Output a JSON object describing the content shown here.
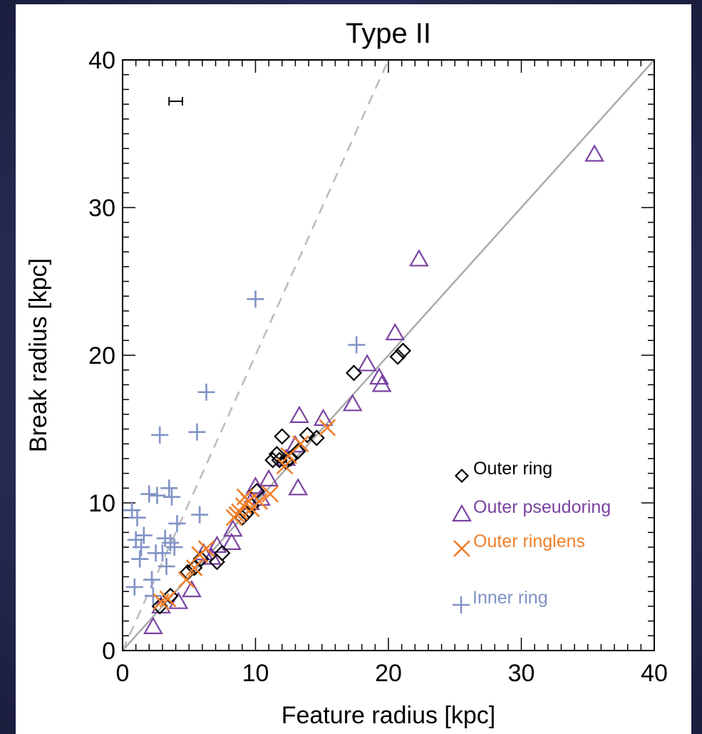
{
  "chart_data": {
    "type": "scatter",
    "title": "Type II",
    "xlabel": "Feature radius [kpc]",
    "ylabel": "Break radius [kpc]",
    "xlim": [
      0,
      40
    ],
    "ylim": [
      0,
      40
    ],
    "xticks": [
      "0",
      "10",
      "20",
      "30",
      "40"
    ],
    "yticks": [
      "0",
      "10",
      "20",
      "30",
      "40"
    ],
    "reference_lines": [
      {
        "style": "solid",
        "color": "#aaaaaa",
        "slope": 1
      },
      {
        "style": "dashed",
        "color": "#bbbbbb",
        "slope": 2
      }
    ],
    "errorbar": {
      "x": 4.0,
      "y": 37.2,
      "xerr": 0.5,
      "color": "#000000"
    },
    "legend_placement": "lower-right",
    "series": [
      {
        "name": "Outer ring",
        "marker": "diamond",
        "color": "#000000",
        "points": [
          [
            2.8,
            3.0
          ],
          [
            3.6,
            3.7
          ],
          [
            4.9,
            5.3
          ],
          [
            5.4,
            5.6
          ],
          [
            5.9,
            6.2
          ],
          [
            7.1,
            6.0
          ],
          [
            7.5,
            6.6
          ],
          [
            9.0,
            9.0
          ],
          [
            9.3,
            9.3
          ],
          [
            9.7,
            9.8
          ],
          [
            10.1,
            10.8
          ],
          [
            11.3,
            12.9
          ],
          [
            11.6,
            13.3
          ],
          [
            11.8,
            12.9
          ],
          [
            12.0,
            14.5
          ],
          [
            12.3,
            12.8
          ],
          [
            12.6,
            13.0
          ],
          [
            13.2,
            13.5
          ],
          [
            13.9,
            14.6
          ],
          [
            14.6,
            14.4
          ],
          [
            17.4,
            18.8
          ],
          [
            20.7,
            19.9
          ],
          [
            21.1,
            20.3
          ]
        ]
      },
      {
        "name": "Outer pseudoring",
        "marker": "triangle",
        "color": "#7a43a2",
        "points": [
          [
            2.3,
            1.6
          ],
          [
            2.9,
            3.0
          ],
          [
            4.2,
            3.3
          ],
          [
            5.2,
            4.1
          ],
          [
            6.1,
            6.6
          ],
          [
            6.7,
            6.3
          ],
          [
            7.1,
            7.1
          ],
          [
            8.2,
            7.3
          ],
          [
            8.3,
            8.2
          ],
          [
            9.6,
            10.0
          ],
          [
            10.0,
            11.1
          ],
          [
            10.4,
            10.3
          ],
          [
            11.0,
            11.6
          ],
          [
            12.3,
            13.0
          ],
          [
            13.0,
            13.9
          ],
          [
            13.2,
            11.0
          ],
          [
            13.3,
            15.9
          ],
          [
            15.1,
            15.7
          ],
          [
            17.3,
            16.7
          ],
          [
            18.4,
            19.4
          ],
          [
            19.3,
            18.5
          ],
          [
            19.5,
            18.0
          ],
          [
            20.5,
            21.5
          ],
          [
            22.3,
            26.5
          ],
          [
            35.5,
            33.6
          ]
        ]
      },
      {
        "name": "Outer ringlens",
        "marker": "x",
        "color": "#f07f2a",
        "points": [
          [
            2.9,
            3.3
          ],
          [
            3.4,
            3.5
          ],
          [
            4.8,
            4.8
          ],
          [
            5.4,
            5.6
          ],
          [
            5.8,
            6.5
          ],
          [
            6.3,
            6.9
          ],
          [
            8.4,
            9.0
          ],
          [
            8.6,
            9.2
          ],
          [
            8.8,
            9.4
          ],
          [
            9.1,
            9.8
          ],
          [
            9.2,
            10.4
          ],
          [
            9.5,
            10.1
          ],
          [
            9.7,
            9.6
          ],
          [
            10.3,
            10.1
          ],
          [
            11.1,
            10.6
          ],
          [
            12.2,
            12.5
          ],
          [
            12.5,
            13.2
          ],
          [
            13.4,
            14.0
          ],
          [
            15.4,
            15.1
          ]
        ]
      },
      {
        "name": "Inner ring",
        "marker": "plus",
        "color": "#8193c6",
        "points": [
          [
            0.7,
            9.5
          ],
          [
            0.9,
            4.3
          ],
          [
            1.0,
            7.5
          ],
          [
            1.1,
            9.0
          ],
          [
            1.3,
            6.2
          ],
          [
            1.4,
            7.0
          ],
          [
            1.6,
            7.8
          ],
          [
            2.0,
            10.6
          ],
          [
            2.2,
            4.8
          ],
          [
            2.3,
            3.7
          ],
          [
            2.5,
            6.6
          ],
          [
            2.6,
            10.5
          ],
          [
            2.8,
            14.6
          ],
          [
            3.0,
            6.6
          ],
          [
            3.2,
            7.6
          ],
          [
            3.3,
            5.7
          ],
          [
            3.5,
            11.0
          ],
          [
            3.6,
            7.3
          ],
          [
            3.7,
            10.4
          ],
          [
            3.9,
            7.0
          ],
          [
            4.1,
            8.6
          ],
          [
            5.6,
            14.8
          ],
          [
            5.8,
            9.2
          ],
          [
            6.3,
            17.5
          ],
          [
            10.0,
            23.8
          ],
          [
            17.6,
            20.7
          ]
        ]
      }
    ]
  }
}
